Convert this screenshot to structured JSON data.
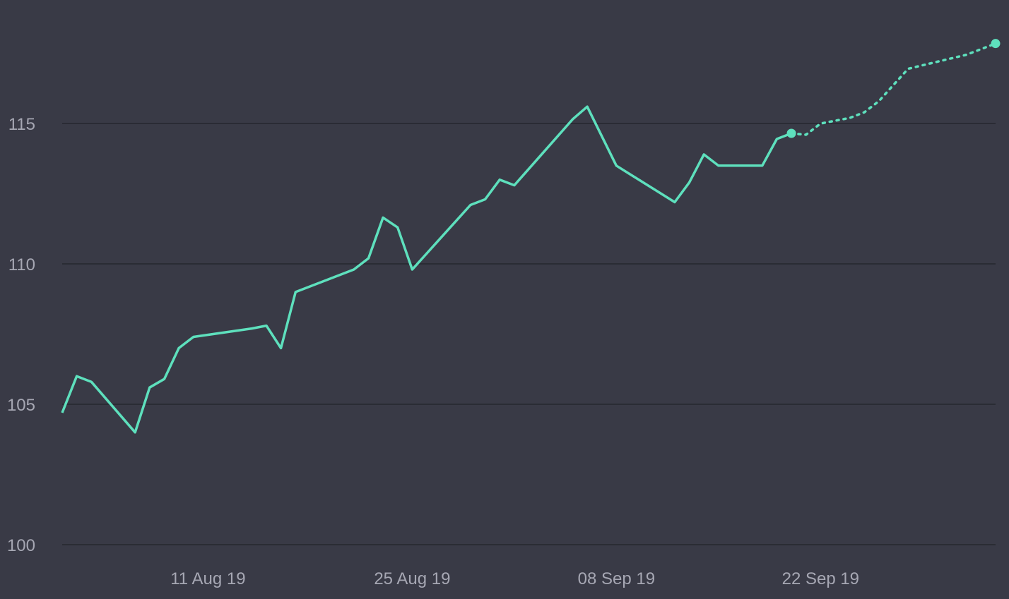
{
  "colors": {
    "background": "#393a46",
    "line": "#5ee0bd",
    "grid": "#26272f",
    "tick_text": "#a6a7b3"
  },
  "chart_data": {
    "type": "line",
    "title": "",
    "xlabel": "",
    "ylabel": "",
    "ylim": [
      100,
      119.4
    ],
    "xlim": [
      "2019-08-01",
      "2019-10-04"
    ],
    "grid": "horizontal",
    "y_ticks": [
      100,
      105,
      110,
      115
    ],
    "y_tick_labels": [
      "100",
      "105",
      "110",
      "115"
    ],
    "x_ticks": [
      "2019-08-11",
      "2019-08-25",
      "2019-09-08",
      "2019-09-22"
    ],
    "x_tick_labels": [
      "11 Aug 19",
      "25 Aug 19",
      "08 Sep 19",
      "22 Sep 19"
    ],
    "series": [
      {
        "style": "solid",
        "end_marker": true,
        "points": [
          [
            "2019-08-01",
            104.7
          ],
          [
            "2019-08-02",
            106.0
          ],
          [
            "2019-08-03",
            105.8
          ],
          [
            "2019-08-06",
            104.0
          ],
          [
            "2019-08-07",
            105.6
          ],
          [
            "2019-08-08",
            105.9
          ],
          [
            "2019-08-09",
            107.0
          ],
          [
            "2019-08-10",
            107.4
          ],
          [
            "2019-08-14",
            107.7
          ],
          [
            "2019-08-15",
            107.8
          ],
          [
            "2019-08-16",
            107.0
          ],
          [
            "2019-08-17",
            109.0
          ],
          [
            "2019-08-21",
            109.8
          ],
          [
            "2019-08-22",
            110.2
          ],
          [
            "2019-08-23",
            111.65
          ],
          [
            "2019-08-24",
            111.3
          ],
          [
            "2019-08-25",
            109.8
          ],
          [
            "2019-08-29",
            112.1
          ],
          [
            "2019-08-30",
            112.3
          ],
          [
            "2019-08-31",
            113.0
          ],
          [
            "2019-09-01",
            112.8
          ],
          [
            "2019-09-05",
            115.15
          ],
          [
            "2019-09-06",
            115.6
          ],
          [
            "2019-09-08",
            113.5
          ],
          [
            "2019-09-12",
            112.2
          ],
          [
            "2019-09-13",
            112.9
          ],
          [
            "2019-09-14",
            113.9
          ],
          [
            "2019-09-15",
            113.5
          ],
          [
            "2019-09-18",
            113.5
          ],
          [
            "2019-09-19",
            114.45
          ],
          [
            "2019-09-20",
            114.65
          ]
        ]
      },
      {
        "style": "dotted",
        "end_marker": true,
        "points": [
          [
            "2019-09-20",
            114.65
          ],
          [
            "2019-09-21",
            114.6
          ],
          [
            "2019-09-22",
            115.0
          ],
          [
            "2019-09-24",
            115.2
          ],
          [
            "2019-09-25",
            115.4
          ],
          [
            "2019-09-26",
            115.8
          ],
          [
            "2019-09-28",
            116.95
          ],
          [
            "2019-09-30",
            117.2
          ],
          [
            "2019-10-02",
            117.45
          ],
          [
            "2019-10-04",
            117.85
          ]
        ]
      }
    ]
  }
}
